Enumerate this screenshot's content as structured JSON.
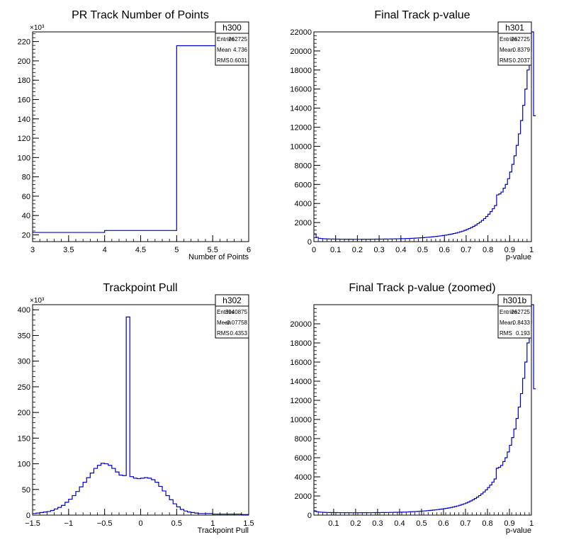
{
  "chart_data": [
    {
      "type": "histogram",
      "title": "PR Track Number of Points",
      "xlabel": "Number of Points",
      "ylabel": "",
      "exponent_label": "×10³",
      "xlim": [
        3,
        6
      ],
      "ylim": [
        13,
        230
      ],
      "x_ticks": [
        3,
        3.5,
        4,
        4.5,
        5,
        5.5,
        6
      ],
      "x_tick_labels": [
        "3",
        "3.5",
        "4",
        "4.5",
        "5",
        "5.5",
        "6"
      ],
      "y_ticks": [
        20,
        40,
        60,
        80,
        100,
        120,
        140,
        160,
        180,
        200,
        220
      ],
      "y_tick_labels": [
        "20",
        "40",
        "60",
        "80",
        "100",
        "120",
        "140",
        "160",
        "180",
        "200",
        "220"
      ],
      "bins": [
        [
          3,
          4,
          22.5
        ],
        [
          4,
          5,
          24.5
        ],
        [
          5,
          6,
          215.7
        ]
      ],
      "stats": {
        "name": "h300",
        "rows": [
          {
            "label": "Entries",
            "value": "262725"
          },
          {
            "label": "Mean",
            "value": "4.736"
          },
          {
            "label": "RMS",
            "value": "0.6031"
          }
        ]
      }
    },
    {
      "type": "histogram",
      "title": "Final Track p-value",
      "xlabel": "p-value",
      "ylabel": "",
      "exponent_label": "",
      "xlim": [
        0,
        1
      ],
      "ylim": [
        0,
        22000
      ],
      "x_ticks": [
        0,
        0.1,
        0.2,
        0.3,
        0.4,
        0.5,
        0.6,
        0.7,
        0.8,
        0.9,
        1
      ],
      "x_tick_labels": [
        "0",
        "0.1",
        "0.2",
        "0.3",
        "0.4",
        "0.5",
        "0.6",
        "0.7",
        "0.8",
        "0.9",
        "1"
      ],
      "y_ticks": [
        0,
        2000,
        4000,
        6000,
        8000,
        10000,
        12000,
        14000,
        16000,
        18000,
        20000,
        22000
      ],
      "y_tick_labels": [
        "0",
        "2000",
        "4000",
        "6000",
        "8000",
        "10000",
        "12000",
        "14000",
        "16000",
        "18000",
        "20000",
        "22000"
      ],
      "bin_width": 0.01,
      "bin_start": 0,
      "values": [
        800,
        450,
        350,
        320,
        300,
        290,
        280,
        275,
        270,
        265,
        260,
        258,
        256,
        254,
        252,
        250,
        249,
        248,
        247,
        246,
        246,
        247,
        248,
        249,
        250,
        252,
        254,
        256,
        258,
        260,
        262,
        265,
        268,
        271,
        275,
        279,
        283,
        288,
        294,
        300,
        306,
        313,
        320,
        330,
        340,
        350,
        362,
        375,
        390,
        405,
        420,
        440,
        460,
        480,
        500,
        525,
        550,
        580,
        610,
        640,
        675,
        710,
        750,
        800,
        850,
        900,
        960,
        1030,
        1100,
        1180,
        1270,
        1370,
        1480,
        1600,
        1730,
        1880,
        2040,
        2220,
        2420,
        2640,
        2880,
        3150,
        3450,
        3780,
        4900,
        5000,
        5200,
        5600,
        6000,
        6600,
        7300,
        8100,
        9000,
        10100,
        11300,
        12700,
        14300,
        16000,
        18000,
        20000,
        23000,
        13200
      ],
      "stats": {
        "name": "h301",
        "rows": [
          {
            "label": "Entries",
            "value": "262725"
          },
          {
            "label": "Mean",
            "value": "0.8379"
          },
          {
            "label": "RMS",
            "value": "0.2037"
          }
        ]
      }
    },
    {
      "type": "histogram",
      "title": "Trackpoint Pull",
      "xlabel": "Trackpoint Pull",
      "ylabel": "",
      "exponent_label": "×10³",
      "xlim": [
        -1.5,
        1.5
      ],
      "ylim": [
        0,
        410
      ],
      "x_ticks": [
        -1.5,
        -1,
        -0.5,
        0,
        0.5,
        1,
        1.5
      ],
      "x_tick_labels": [
        "−1.5",
        "−1",
        "−0.5",
        "0",
        "0.5",
        "1",
        "1.5"
      ],
      "y_ticks": [
        0,
        50,
        100,
        150,
        200,
        250,
        300,
        350,
        400
      ],
      "y_tick_labels": [
        "0",
        "50",
        "100",
        "150",
        "200",
        "250",
        "300",
        "350",
        "400"
      ],
      "bin_width": 0.05,
      "bin_start": -1.5,
      "values": [
        3,
        4,
        5,
        6,
        7,
        9,
        12,
        15,
        19,
        25,
        31,
        38,
        46,
        55,
        64,
        73,
        82,
        91,
        97,
        101,
        100,
        97,
        91,
        84,
        78,
        77,
        386,
        75,
        72,
        71,
        72,
        73,
        72,
        69,
        64,
        56,
        47,
        38,
        30,
        22,
        16,
        11,
        8,
        6,
        5,
        4,
        3,
        3,
        3,
        3,
        2,
        2,
        2,
        2,
        2,
        2,
        2,
        2,
        1,
        1
      ],
      "stats": {
        "name": "h302",
        "rows": [
          {
            "label": "Entries",
            "value": "3940875"
          },
          {
            "label": "Mean",
            "value": "−0.07758"
          },
          {
            "label": "RMS",
            "value": "0.4353"
          }
        ]
      }
    },
    {
      "type": "histogram",
      "title": "Final Track p-value (zoomed)",
      "xlabel": "p-value",
      "ylabel": "",
      "exponent_label": "",
      "xlim": [
        0.01,
        1
      ],
      "ylim": [
        0,
        22000
      ],
      "x_ticks": [
        0.1,
        0.2,
        0.3,
        0.4,
        0.5,
        0.6,
        0.7,
        0.8,
        0.9,
        1
      ],
      "x_tick_labels": [
        "0.1",
        "0.2",
        "0.3",
        "0.4",
        "0.5",
        "0.6",
        "0.7",
        "0.8",
        "0.9",
        "1"
      ],
      "y_ticks": [
        0,
        2000,
        4000,
        6000,
        8000,
        10000,
        12000,
        14000,
        16000,
        18000,
        20000
      ],
      "y_tick_labels": [
        "0",
        "2000",
        "4000",
        "6000",
        "8000",
        "10000",
        "12000",
        "14000",
        "16000",
        "18000",
        "20000"
      ],
      "bin_width": 0.01,
      "bin_start": 0.01,
      "values": [
        450,
        350,
        320,
        300,
        290,
        280,
        275,
        270,
        265,
        260,
        258,
        256,
        254,
        252,
        250,
        249,
        248,
        247,
        246,
        246,
        247,
        248,
        249,
        250,
        252,
        254,
        256,
        258,
        260,
        262,
        265,
        268,
        271,
        275,
        279,
        283,
        288,
        294,
        300,
        306,
        313,
        320,
        330,
        340,
        350,
        362,
        375,
        390,
        405,
        420,
        440,
        460,
        480,
        500,
        525,
        550,
        580,
        610,
        640,
        675,
        710,
        750,
        800,
        850,
        900,
        960,
        1030,
        1100,
        1180,
        1270,
        1370,
        1480,
        1600,
        1730,
        1880,
        2040,
        2220,
        2420,
        2640,
        2880,
        3150,
        3450,
        3780,
        4900,
        5000,
        5200,
        5600,
        6000,
        6600,
        7300,
        8100,
        9000,
        10100,
        11300,
        12700,
        14300,
        16000,
        18000,
        20000,
        23000,
        13200
      ],
      "stats": {
        "name": "h301b",
        "rows": [
          {
            "label": "Entries",
            "value": "262725"
          },
          {
            "label": "Mean",
            "value": "0.8433"
          },
          {
            "label": "RMS",
            "value": "0.193"
          }
        ]
      }
    }
  ],
  "colors": {
    "line": "#0000cc",
    "axis": "#000000",
    "background": "#ffffff"
  }
}
